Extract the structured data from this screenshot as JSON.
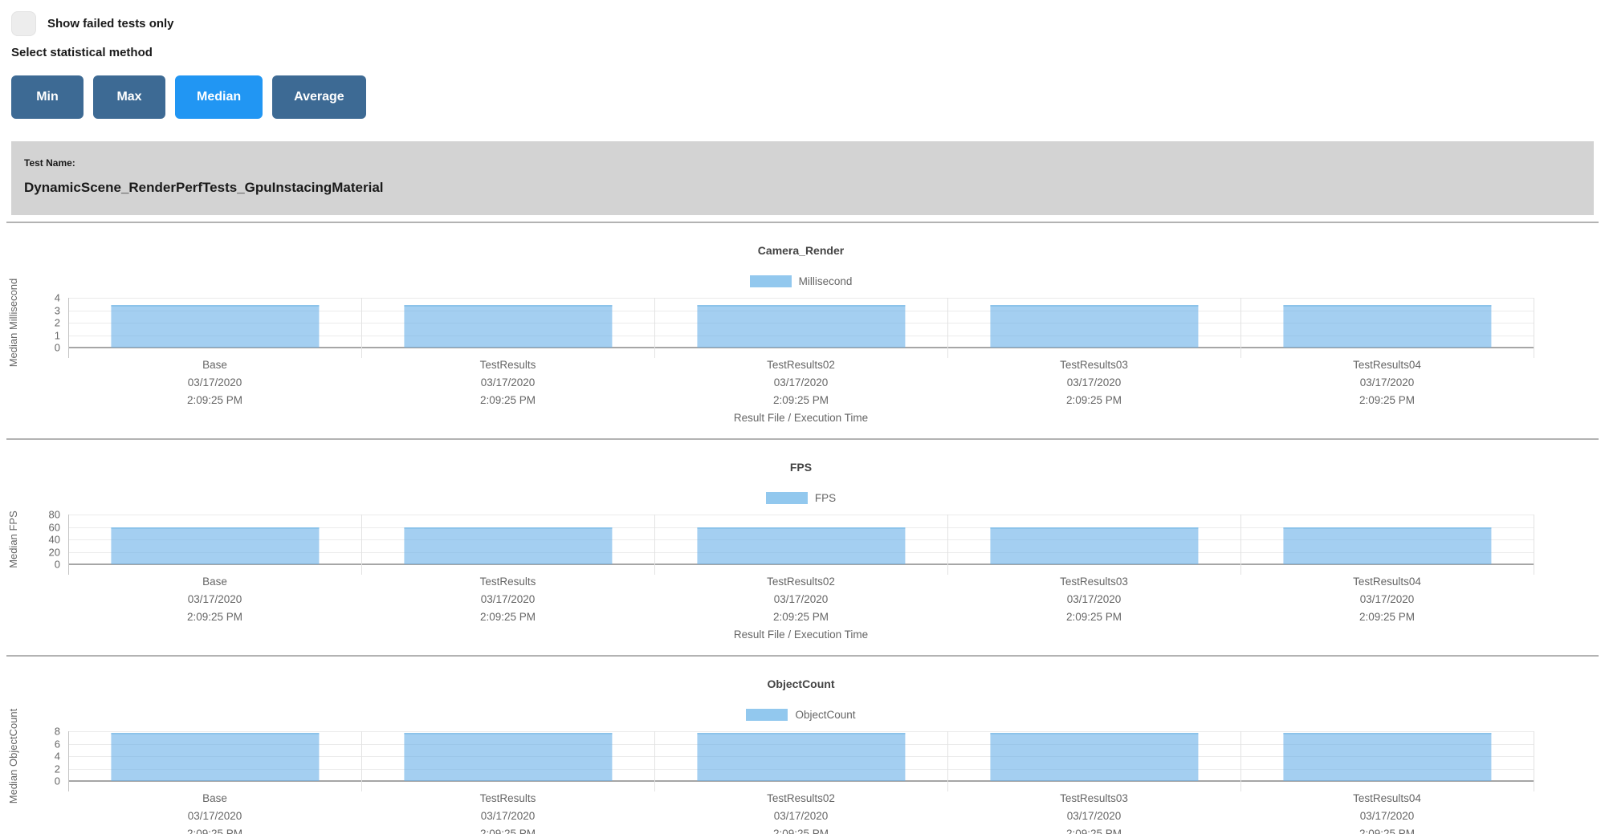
{
  "colors": {
    "button": "#3d6a94",
    "button_active": "#2196f3",
    "banner_background": "#d3d3d3",
    "bar_fill": "#92c8ee",
    "bar_border": "#8cc3ea"
  },
  "controls": {
    "show_failed_label": "Show failed tests only",
    "show_failed_checked": false,
    "select_method_label": "Select statistical method",
    "buttons": [
      {
        "label": "Min",
        "active": false
      },
      {
        "label": "Max",
        "active": false
      },
      {
        "label": "Median",
        "active": true
      },
      {
        "label": "Average",
        "active": false
      }
    ]
  },
  "test_banner": {
    "label": "Test Name:",
    "name": "DynamicScene_RenderPerfTests_GpuInstacingMaterial"
  },
  "chart_data": [
    {
      "type": "bar",
      "title": "Camera_Render",
      "legend": "Millisecond",
      "ylabel": "Median Millisecond",
      "xlabel": "Result File / Execution Time",
      "ylim": [
        0,
        4
      ],
      "yticks": [
        4,
        3,
        2,
        1,
        0
      ],
      "grid": true,
      "legend_position": "top",
      "categories": [
        "Base",
        "TestResults",
        "TestResults02",
        "TestResults03",
        "TestResults04"
      ],
      "category_date": "03/17/2020",
      "category_time": "2:09:25 PM",
      "values": [
        3.4,
        3.4,
        3.4,
        3.4,
        3.4
      ]
    },
    {
      "type": "bar",
      "title": "FPS",
      "legend": "FPS",
      "ylabel": "Median FPS",
      "xlabel": "Result File / Execution Time",
      "ylim": [
        0,
        80
      ],
      "yticks": [
        80,
        60,
        40,
        20,
        0
      ],
      "grid": true,
      "legend_position": "top",
      "categories": [
        "Base",
        "TestResults",
        "TestResults02",
        "TestResults03",
        "TestResults04"
      ],
      "category_date": "03/17/2020",
      "category_time": "2:09:25 PM",
      "values": [
        59,
        59,
        59,
        59,
        59
      ]
    },
    {
      "type": "bar",
      "title": "ObjectCount",
      "legend": "ObjectCount",
      "ylabel": "Median ObjectCount",
      "xlabel": "",
      "ylim": [
        0,
        8
      ],
      "yticks": [
        8,
        6,
        4,
        2,
        0
      ],
      "grid": true,
      "legend_position": "top",
      "categories": [
        "Base",
        "TestResults",
        "TestResults02",
        "TestResults03",
        "TestResults04"
      ],
      "category_date": "03/17/2020",
      "category_time": "2:09:25 PM",
      "values": [
        7.8,
        7.8,
        7.8,
        7.8,
        7.8
      ]
    }
  ]
}
